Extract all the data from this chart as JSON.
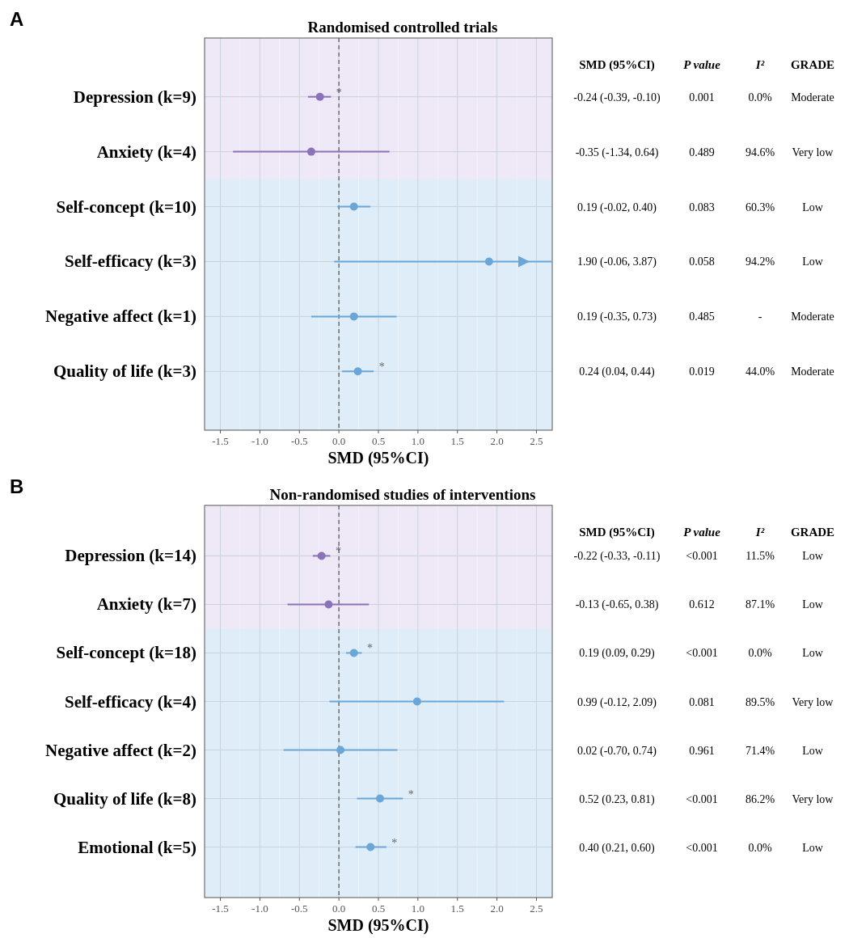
{
  "chart_data": [
    {
      "type": "scatter",
      "orientation": "horizontal",
      "title": "Randomised controlled trials",
      "xlabel": "SMD (95%CI)",
      "categories": [
        "Depression (k=9)",
        "Anxiety (k=4)",
        "Self-concept (k=10)",
        "Self-efficacy (k=3)",
        "Negative affect (k=1)",
        "Quality of life (k=3)"
      ],
      "values": [
        -0.24,
        -0.35,
        0.19,
        1.9,
        0.19,
        0.24
      ],
      "value_labels": [
        "*",
        null,
        null,
        null,
        null,
        "*"
      ],
      "errors": [
        [
          -0.39,
          -0.1
        ],
        [
          -1.34,
          0.64
        ],
        [
          -0.02,
          0.4
        ],
        [
          -0.06,
          3.87
        ],
        [
          -0.35,
          0.73
        ],
        [
          0.04,
          0.44
        ]
      ],
      "colors": [
        "#8a73b8",
        "#8a73b8",
        "#6aa7d8",
        "#6aa7d8",
        "#6aa7d8",
        "#6aa7d8"
      ],
      "xlim": [
        -1.7,
        2.7
      ],
      "xticks": [
        {
          "value": -1.5,
          "label": "-1.5"
        },
        {
          "value": -1,
          "label": "-1.0"
        },
        {
          "value": -0.5,
          "label": "-0.5"
        },
        {
          "value": 0,
          "label": "0.0"
        },
        0.5,
        {
          "value": 1,
          "label": "1.0"
        },
        1.5,
        {
          "value": 2,
          "label": "2.0"
        },
        2.5
      ],
      "grid": true,
      "marker": "circle",
      "ref_lines": [
        {
          "axis": "x",
          "value": 0,
          "color": "#555555",
          "line_style": "dashed"
        }
      ],
      "annotations": [
        "A",
        "SMD (95%CI)",
        "P value",
        "I²",
        "GRADE",
        "-0.24 (-0.39, -0.10)",
        "0.001",
        "0.0%",
        "Moderate",
        "-0.35 (-1.34, 0.64)",
        "0.489",
        "94.6%",
        "Very low",
        "0.19 (-0.02, 0.40)",
        "0.083",
        "60.3%",
        "Low",
        "1.90 (-0.06, 3.87)",
        "0.058",
        "94.2%",
        "Low",
        "0.19 (-0.35, 0.73)",
        "0.485",
        "-",
        "Moderate",
        "0.24 (0.04, 0.44)",
        "0.019",
        "44.0%",
        "Moderate"
      ]
    },
    {
      "type": "scatter",
      "orientation": "horizontal",
      "title": "Non-randomised studies of interventions",
      "xlabel": "SMD (95%CI)",
      "categories": [
        "Depression (k=14)",
        "Anxiety (k=7)",
        "Self-concept (k=18)",
        "Self-efficacy (k=4)",
        "Negative affect (k=2)",
        "Quality of life (k=8)",
        "Emotional (k=5)"
      ],
      "values": [
        -0.22,
        -0.13,
        0.19,
        0.99,
        0.02,
        0.52,
        0.4
      ],
      "value_labels": [
        "*",
        null,
        "*",
        null,
        null,
        "*",
        "*"
      ],
      "errors": [
        [
          -0.33,
          -0.11
        ],
        [
          -0.65,
          0.38
        ],
        [
          0.09,
          0.29
        ],
        [
          -0.12,
          2.09
        ],
        [
          -0.7,
          0.74
        ],
        [
          0.23,
          0.81
        ],
        [
          0.21,
          0.6
        ]
      ],
      "colors": [
        "#8a73b8",
        "#8a73b8",
        "#6aa7d8",
        "#6aa7d8",
        "#6aa7d8",
        "#6aa7d8",
        "#6aa7d8"
      ],
      "xlim": [
        -1.7,
        2.7
      ],
      "xticks": [
        {
          "value": -1.5,
          "label": "-1.5"
        },
        {
          "value": -1,
          "label": "-1.0"
        },
        {
          "value": -0.5,
          "label": "-0.5"
        },
        {
          "value": 0,
          "label": "0.0"
        },
        0.5,
        {
          "value": 1,
          "label": "1.0"
        },
        1.5,
        {
          "value": 2,
          "label": "2.0"
        },
        2.5
      ],
      "grid": true,
      "marker": "circle",
      "ref_lines": [
        {
          "axis": "x",
          "value": 0,
          "color": "#555555",
          "line_style": "dashed"
        }
      ],
      "annotations": [
        "B",
        "SMD (95%CI)",
        "P value",
        "I²",
        "GRADE",
        "-0.22 (-0.33, -0.11)",
        "<0.001",
        "11.5%",
        "Low",
        "-0.13 (-0.65, 0.38)",
        "0.612",
        "87.1%",
        "Low",
        "0.19 (0.09, 0.29)",
        "<0.001",
        "0.0%",
        "Low",
        "0.99 (-0.12, 2.09)",
        "0.081",
        "89.5%",
        "Very low",
        "0.02 (-0.70, 0.74)",
        "0.961",
        "71.4%",
        "Low",
        "0.52 (0.23, 0.81)",
        "<0.001",
        "86.2%",
        "Very low",
        "0.40 (0.21, 0.60)",
        "<0.001",
        "0.0%",
        "Low"
      ]
    }
  ]
}
